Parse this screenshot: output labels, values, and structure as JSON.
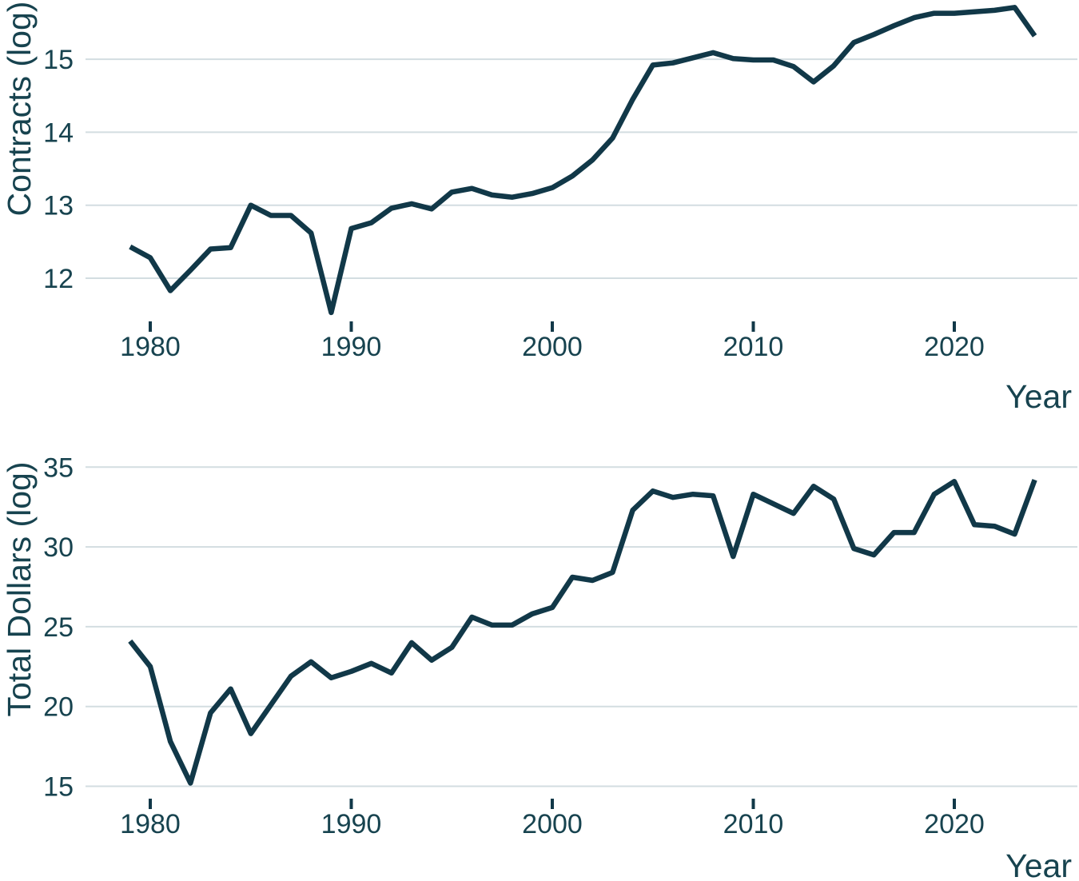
{
  "colors": {
    "line": "#113848",
    "text": "#17434f",
    "grid": "#d3dde1",
    "tick_mark": "#113848",
    "background": "#ffffff"
  },
  "chart_data": [
    {
      "type": "line",
      "id": "contracts",
      "ylabel": "Contracts (log)",
      "xlabel": "Year",
      "legend": "none",
      "grid": "horizontal-only",
      "xticks": [
        1980,
        1990,
        2000,
        2010,
        2020
      ],
      "yticks": [
        12,
        13,
        14,
        15
      ],
      "xlim": [
        1977.8,
        2026.2
      ],
      "ylim": [
        11.4,
        15.75
      ],
      "x": [
        1979,
        1980,
        1981,
        1982,
        1983,
        1984,
        1985,
        1986,
        1987,
        1988,
        1989,
        1990,
        1991,
        1992,
        1993,
        1994,
        1995,
        1996,
        1997,
        1998,
        1999,
        2000,
        2001,
        2002,
        2003,
        2004,
        2005,
        2006,
        2007,
        2008,
        2009,
        2010,
        2011,
        2012,
        2013,
        2014,
        2015,
        2016,
        2017,
        2018,
        2019,
        2020,
        2021,
        2022,
        2023,
        2024
      ],
      "values": [
        12.43,
        12.28,
        11.83,
        12.11,
        12.4,
        12.42,
        13.0,
        12.86,
        12.86,
        12.62,
        11.53,
        12.68,
        12.76,
        12.96,
        13.02,
        12.95,
        13.18,
        13.23,
        13.14,
        13.11,
        13.16,
        13.24,
        13.4,
        13.62,
        13.92,
        14.45,
        14.92,
        14.95,
        15.02,
        15.09,
        15.01,
        14.99,
        14.99,
        14.9,
        14.69,
        14.91,
        15.23,
        15.34,
        15.46,
        15.57,
        15.63,
        15.63,
        15.65,
        15.67,
        15.71,
        15.32
      ]
    },
    {
      "type": "line",
      "id": "total-dollars",
      "ylabel": "Total Dollars (log)",
      "xlabel": "Year",
      "legend": "none",
      "grid": "horizontal-only",
      "xticks": [
        1980,
        1990,
        2000,
        2010,
        2020
      ],
      "yticks": [
        15,
        20,
        25,
        30,
        35
      ],
      "xlim": [
        1977.8,
        2026.2
      ],
      "ylim": [
        14.6,
        35.8
      ],
      "x": [
        1979,
        1980,
        1981,
        1982,
        1983,
        1984,
        1985,
        1986,
        1987,
        1988,
        1989,
        1990,
        1991,
        1992,
        1993,
        1994,
        1995,
        1996,
        1997,
        1998,
        1999,
        2000,
        2001,
        2002,
        2003,
        2004,
        2005,
        2006,
        2007,
        2008,
        2009,
        2010,
        2011,
        2012,
        2013,
        2014,
        2015,
        2016,
        2017,
        2018,
        2019,
        2020,
        2021,
        2022,
        2023,
        2024
      ],
      "values": [
        24.1,
        22.5,
        17.8,
        15.2,
        19.6,
        21.1,
        18.3,
        20.1,
        21.9,
        22.8,
        21.8,
        22.2,
        22.7,
        22.1,
        24.0,
        22.9,
        23.7,
        25.6,
        25.1,
        25.1,
        25.8,
        26.2,
        28.1,
        27.9,
        28.4,
        32.3,
        33.5,
        33.1,
        33.3,
        33.2,
        29.4,
        33.3,
        32.7,
        32.1,
        33.8,
        33.0,
        29.9,
        29.5,
        30.9,
        30.9,
        33.3,
        34.1,
        31.4,
        31.3,
        30.8,
        34.2
      ]
    }
  ]
}
